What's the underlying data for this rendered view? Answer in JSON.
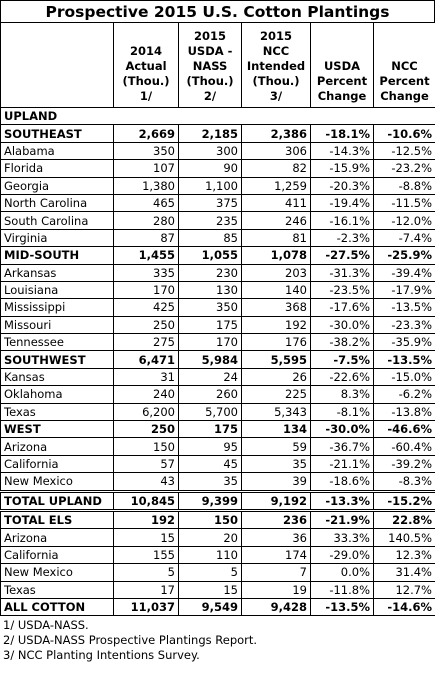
{
  "title": "Prospective 2015 U.S. Cotton Plantings",
  "table": {
    "columns": [
      [],
      [
        "2014",
        "Actual",
        "(Thou.)",
        "1/"
      ],
      [
        "2015",
        "USDA -",
        "NASS",
        "(Thou.)",
        "2/"
      ],
      [
        "2015",
        "NCC",
        "Intended",
        "(Thou.)",
        "3/"
      ],
      [
        "USDA",
        "Percent",
        "Change"
      ],
      [
        "NCC",
        "Percent",
        "Change"
      ]
    ],
    "rows": [
      {
        "cells": [
          "UPLAND"
        ],
        "bold": true
      },
      {
        "cells": [
          "SOUTHEAST",
          "2,669",
          "2,185",
          "2,386",
          "-18.1%",
          "-10.6%"
        ],
        "bold": true
      },
      {
        "cells": [
          "Alabama",
          "350",
          "300",
          "306",
          "-14.3%",
          "-12.5%"
        ]
      },
      {
        "cells": [
          "Florida",
          "107",
          "90",
          "82",
          "-15.9%",
          "-23.2%"
        ]
      },
      {
        "cells": [
          "Georgia",
          "1,380",
          "1,100",
          "1,259",
          "-20.3%",
          "-8.8%"
        ]
      },
      {
        "cells": [
          "North Carolina",
          "465",
          "375",
          "411",
          "-19.4%",
          "-11.5%"
        ]
      },
      {
        "cells": [
          "South Carolina",
          "280",
          "235",
          "246",
          "-16.1%",
          "-12.0%"
        ]
      },
      {
        "cells": [
          "Virginia",
          "87",
          "85",
          "81",
          "-2.3%",
          "-7.4%"
        ]
      },
      {
        "cells": [
          "MID-SOUTH",
          "1,455",
          "1,055",
          "1,078",
          "-27.5%",
          "-25.9%"
        ],
        "bold": true
      },
      {
        "cells": [
          "Arkansas",
          "335",
          "230",
          "203",
          "-31.3%",
          "-39.4%"
        ]
      },
      {
        "cells": [
          "Louisiana",
          "170",
          "130",
          "140",
          "-23.5%",
          "-17.9%"
        ]
      },
      {
        "cells": [
          "Mississippi",
          "425",
          "350",
          "368",
          "-17.6%",
          "-13.5%"
        ]
      },
      {
        "cells": [
          "Missouri",
          "250",
          "175",
          "192",
          "-30.0%",
          "-23.3%"
        ]
      },
      {
        "cells": [
          "Tennessee",
          "275",
          "170",
          "176",
          "-38.2%",
          "-35.9%"
        ]
      },
      {
        "cells": [
          "SOUTHWEST",
          "6,471",
          "5,984",
          "5,595",
          "-7.5%",
          "-13.5%"
        ],
        "bold": true
      },
      {
        "cells": [
          "Kansas",
          "31",
          "24",
          "26",
          "-22.6%",
          "-15.0%"
        ]
      },
      {
        "cells": [
          "Oklahoma",
          "240",
          "260",
          "225",
          "8.3%",
          "-6.2%"
        ]
      },
      {
        "cells": [
          "Texas",
          "6,200",
          "5,700",
          "5,343",
          "-8.1%",
          "-13.8%"
        ]
      },
      {
        "cells": [
          "WEST",
          "250",
          "175",
          "134",
          "-30.0%",
          "-46.6%"
        ],
        "bold": true
      },
      {
        "cells": [
          "Arizona",
          "150",
          "95",
          "59",
          "-36.7%",
          "-60.4%"
        ]
      },
      {
        "cells": [
          "California",
          "57",
          "45",
          "35",
          "-21.1%",
          "-39.2%"
        ]
      },
      {
        "cells": [
          "New Mexico",
          "43",
          "35",
          "39",
          "-18.6%",
          "-8.3%"
        ]
      },
      {
        "cells": [
          "TOTAL UPLAND",
          "10,845",
          "9,399",
          "9,192",
          "-13.3%",
          "-15.2%"
        ],
        "bold": true
      },
      {
        "cells": [
          "TOTAL ELS",
          "192",
          "150",
          "236",
          "-21.9%",
          "22.8%"
        ],
        "bold": true
      },
      {
        "cells": [
          "Arizona",
          "15",
          "20",
          "36",
          "33.3%",
          "140.5%"
        ]
      },
      {
        "cells": [
          "California",
          "155",
          "110",
          "174",
          "-29.0%",
          "12.3%"
        ]
      },
      {
        "cells": [
          "New Mexico",
          "5",
          "5",
          "7",
          "0.0%",
          "31.4%"
        ]
      },
      {
        "cells": [
          "Texas",
          "17",
          "15",
          "19",
          "-11.8%",
          "12.7%"
        ]
      },
      {
        "cells": [
          "ALL COTTON",
          "11,037",
          "9,549",
          "9,428",
          "-13.5%",
          "-14.6%"
        ],
        "bold": true
      }
    ]
  },
  "footnotes": [
    "1/ USDA-NASS.",
    "2/ USDA-NASS Prospective Plantings Report.",
    "3/ NCC Planting Intentions Survey."
  ]
}
